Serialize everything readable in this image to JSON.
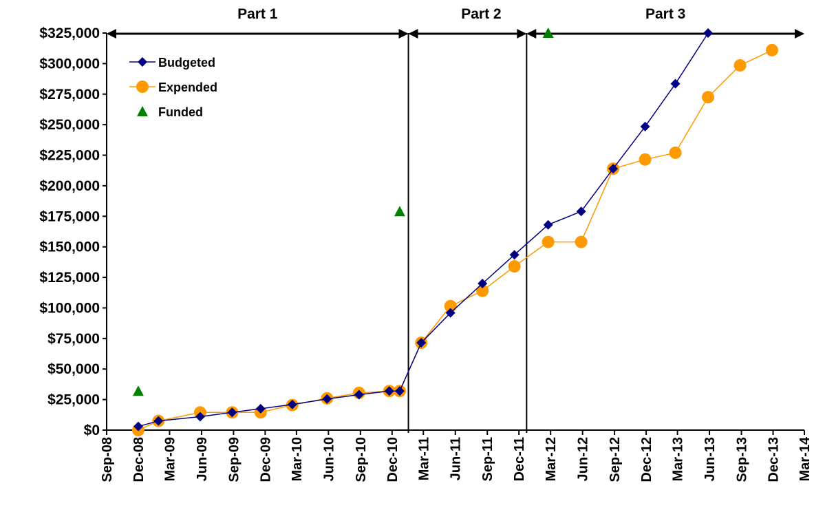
{
  "chart_data": {
    "type": "line",
    "title": "",
    "xlabel": "",
    "ylabel": "",
    "ylim": [
      0,
      325000
    ],
    "xlim": [
      "2008-09-01",
      "2014-03-01"
    ],
    "y_ticks": [
      {
        "value": 0,
        "label": "$0"
      },
      {
        "value": 25000,
        "label": "$25,000"
      },
      {
        "value": 50000,
        "label": "$50,000"
      },
      {
        "value": 75000,
        "label": "$75,000"
      },
      {
        "value": 100000,
        "label": "$100,000"
      },
      {
        "value": 125000,
        "label": "$125,000"
      },
      {
        "value": 150000,
        "label": "$150,000"
      },
      {
        "value": 175000,
        "label": "$175,000"
      },
      {
        "value": 200000,
        "label": "$200,000"
      },
      {
        "value": 225000,
        "label": "$225,000"
      },
      {
        "value": 250000,
        "label": "$250,000"
      },
      {
        "value": 275000,
        "label": "$275,000"
      },
      {
        "value": 300000,
        "label": "$300,000"
      },
      {
        "value": 325000,
        "label": "$325,000"
      }
    ],
    "x_ticks": [
      {
        "date": "2008-09-01",
        "label": "Sep-08"
      },
      {
        "date": "2008-12-01",
        "label": "Dec-08"
      },
      {
        "date": "2009-03-01",
        "label": "Mar-09"
      },
      {
        "date": "2009-06-01",
        "label": "Jun-09"
      },
      {
        "date": "2009-09-01",
        "label": "Sep-09"
      },
      {
        "date": "2009-12-01",
        "label": "Dec-09"
      },
      {
        "date": "2010-03-01",
        "label": "Mar-10"
      },
      {
        "date": "2010-06-01",
        "label": "Jun-10"
      },
      {
        "date": "2010-09-01",
        "label": "Sep-10"
      },
      {
        "date": "2010-12-01",
        "label": "Dec-10"
      },
      {
        "date": "2011-03-01",
        "label": "Mar-11"
      },
      {
        "date": "2011-06-01",
        "label": "Jun-11"
      },
      {
        "date": "2011-09-01",
        "label": "Sep-11"
      },
      {
        "date": "2011-12-01",
        "label": "Dec-11"
      },
      {
        "date": "2012-03-01",
        "label": "Mar-12"
      },
      {
        "date": "2012-06-01",
        "label": "Jun-12"
      },
      {
        "date": "2012-09-01",
        "label": "Sep-12"
      },
      {
        "date": "2012-12-01",
        "label": "Dec-12"
      },
      {
        "date": "2013-03-01",
        "label": "Mar-13"
      },
      {
        "date": "2013-06-01",
        "label": "Jun-13"
      },
      {
        "date": "2013-09-01",
        "label": "Sep-13"
      },
      {
        "date": "2013-12-01",
        "label": "Dec-13"
      },
      {
        "date": "2014-03-01",
        "label": "Mar-14"
      }
    ],
    "series": [
      {
        "name": "Budgeted",
        "color": "#000080",
        "marker": "diamond",
        "points": [
          {
            "x": "2008-12-01",
            "y": 3000
          },
          {
            "x": "2009-01-28",
            "y": 7500
          },
          {
            "x": "2009-05-28",
            "y": 11000
          },
          {
            "x": "2009-08-28",
            "y": 14500
          },
          {
            "x": "2009-11-18",
            "y": 17500
          },
          {
            "x": "2010-02-17",
            "y": 21000
          },
          {
            "x": "2010-05-28",
            "y": 25500
          },
          {
            "x": "2010-08-28",
            "y": 29000
          },
          {
            "x": "2010-11-23",
            "y": 32000
          },
          {
            "x": "2010-12-23",
            "y": 32000
          },
          {
            "x": "2011-02-23",
            "y": 71500
          },
          {
            "x": "2011-05-18",
            "y": 96000
          },
          {
            "x": "2011-08-18",
            "y": 120000
          },
          {
            "x": "2011-11-18",
            "y": 143500
          },
          {
            "x": "2012-02-23",
            "y": 168000
          },
          {
            "x": "2012-05-28",
            "y": 179000
          },
          {
            "x": "2012-08-28",
            "y": 214000
          },
          {
            "x": "2012-11-28",
            "y": 248500
          },
          {
            "x": "2013-02-23",
            "y": 283500
          },
          {
            "x": "2013-05-28",
            "y": 325000
          }
        ]
      },
      {
        "name": "Expended",
        "color": "#FF9900",
        "marker": "circle",
        "points": [
          {
            "x": "2008-12-01",
            "y": 0
          },
          {
            "x": "2009-01-28",
            "y": 7500
          },
          {
            "x": "2009-05-28",
            "y": 14500
          },
          {
            "x": "2009-08-28",
            "y": 14500
          },
          {
            "x": "2009-11-18",
            "y": 14500
          },
          {
            "x": "2010-02-17",
            "y": 20500
          },
          {
            "x": "2010-05-28",
            "y": 26000
          },
          {
            "x": "2010-08-28",
            "y": 30500
          },
          {
            "x": "2010-11-23",
            "y": 32000
          },
          {
            "x": "2010-12-23",
            "y": 32000
          },
          {
            "x": "2011-02-23",
            "y": 71500
          },
          {
            "x": "2011-05-18",
            "y": 101500
          },
          {
            "x": "2011-08-18",
            "y": 114000
          },
          {
            "x": "2011-11-18",
            "y": 134000
          },
          {
            "x": "2012-02-23",
            "y": 154000
          },
          {
            "x": "2012-05-28",
            "y": 154000
          },
          {
            "x": "2012-08-28",
            "y": 214000
          },
          {
            "x": "2012-11-28",
            "y": 221500
          },
          {
            "x": "2013-02-23",
            "y": 227000
          },
          {
            "x": "2013-05-28",
            "y": 272500
          },
          {
            "x": "2013-08-28",
            "y": 298500
          },
          {
            "x": "2013-11-28",
            "y": 311000
          }
        ]
      },
      {
        "name": "Funded",
        "color": "#008000",
        "marker": "triangle",
        "line": false,
        "points": [
          {
            "x": "2008-12-01",
            "y": 32000
          },
          {
            "x": "2010-12-23",
            "y": 179000
          },
          {
            "x": "2012-02-23",
            "y": 325000
          }
        ]
      }
    ],
    "phases": [
      {
        "label": "Part 1",
        "start": "2008-09-01",
        "end": "2011-01-17"
      },
      {
        "label": "Part 2",
        "start": "2011-01-17",
        "end": "2011-12-23"
      },
      {
        "label": "Part 3",
        "start": "2011-12-23",
        "end": "2014-03-01"
      }
    ],
    "legend": {
      "position": "top-left"
    },
    "grid": false
  }
}
